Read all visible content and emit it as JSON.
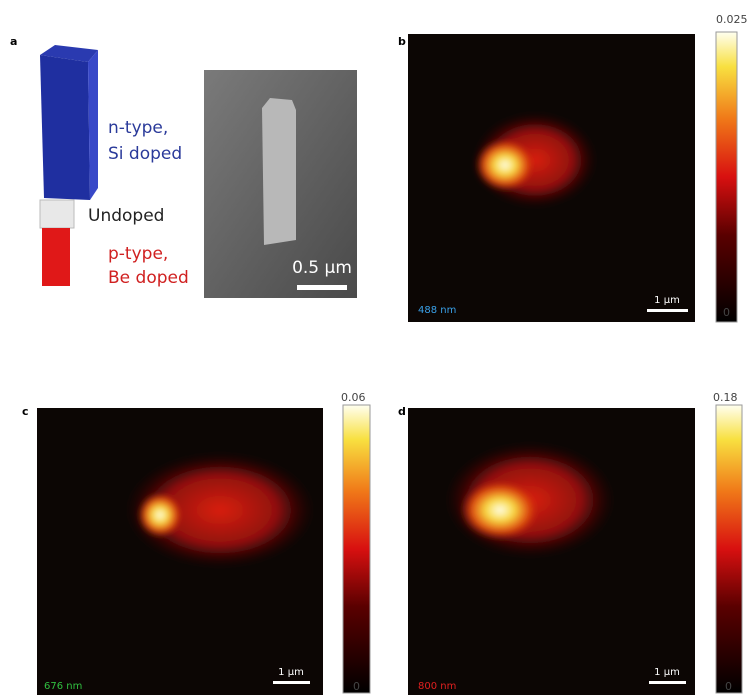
{
  "panels": {
    "a": {
      "label": "a",
      "n_type": "n-type,",
      "n_dopant": "Si doped",
      "undoped": "Undoped",
      "p_type": "p-type,",
      "p_dopant": "Be doped",
      "scale": "0.5 μm"
    },
    "b": {
      "label": "b",
      "wavelength": "488 nm",
      "scale": "1 μm",
      "colorbar_max": "0.025",
      "colorbar_min": "0"
    },
    "c": {
      "label": "c",
      "wavelength": "676 nm",
      "scale": "1 μm",
      "colorbar_max": "0.06",
      "colorbar_min": "0"
    },
    "d": {
      "label": "d",
      "wavelength": "800 nm",
      "scale": "1 μm",
      "colorbar_max": "0.18",
      "colorbar_min": "0"
    }
  }
}
